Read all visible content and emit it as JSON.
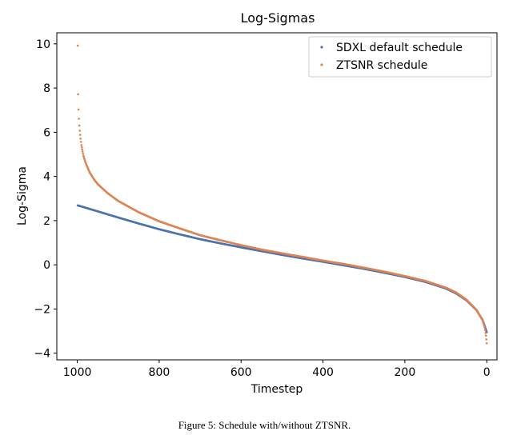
{
  "caption": "Figure 5: Schedule with/without ZTSNR.",
  "chart_data": {
    "type": "scatter",
    "title": "Log-Sigmas",
    "xlabel": "Timestep",
    "ylabel": "Log-Sigma",
    "xlim": [
      1050,
      -25
    ],
    "ylim": [
      -4.3,
      10.5
    ],
    "x_reversed": true,
    "xticks": [
      1000,
      800,
      600,
      400,
      200,
      0
    ],
    "xtick_labels": [
      "1000",
      "800",
      "600",
      "400",
      "200",
      "0"
    ],
    "yticks": [
      -4,
      -2,
      0,
      2,
      4,
      6,
      8,
      10
    ],
    "ytick_labels": [
      "−4",
      "−2",
      "0",
      "2",
      "4",
      "6",
      "8",
      "10"
    ],
    "grid": false,
    "legend_position": "top-right",
    "series": [
      {
        "name": "SDXL default schedule",
        "color": "#4c72b0",
        "points": [
          [
            999,
            2.69
          ],
          [
            950,
            2.42
          ],
          [
            900,
            2.14
          ],
          [
            850,
            1.87
          ],
          [
            800,
            1.61
          ],
          [
            750,
            1.38
          ],
          [
            700,
            1.16
          ],
          [
            650,
            0.97
          ],
          [
            600,
            0.79
          ],
          [
            550,
            0.62
          ],
          [
            500,
            0.45
          ],
          [
            450,
            0.29
          ],
          [
            400,
            0.14
          ],
          [
            350,
            -0.02
          ],
          [
            300,
            -0.18
          ],
          [
            250,
            -0.36
          ],
          [
            200,
            -0.55
          ],
          [
            150,
            -0.77
          ],
          [
            100,
            -1.07
          ],
          [
            75,
            -1.29
          ],
          [
            50,
            -1.6
          ],
          [
            25,
            -2.05
          ],
          [
            10,
            -2.5
          ],
          [
            5,
            -2.75
          ],
          [
            0,
            -3.05
          ]
        ]
      },
      {
        "name": "ZTSNR schedule",
        "color": "#dd8452",
        "points": [
          [
            999,
            9.92
          ],
          [
            998,
            7.72
          ],
          [
            997,
            7.03
          ],
          [
            996,
            6.61
          ],
          [
            995,
            6.3
          ],
          [
            994,
            6.07
          ],
          [
            993,
            5.88
          ],
          [
            992,
            5.71
          ],
          [
            990,
            5.42
          ],
          [
            985,
            4.94
          ],
          [
            980,
            4.63
          ],
          [
            970,
            4.19
          ],
          [
            960,
            3.89
          ],
          [
            950,
            3.65
          ],
          [
            925,
            3.23
          ],
          [
            900,
            2.89
          ],
          [
            850,
            2.38
          ],
          [
            800,
            1.97
          ],
          [
            750,
            1.65
          ],
          [
            700,
            1.34
          ],
          [
            650,
            1.11
          ],
          [
            600,
            0.89
          ],
          [
            550,
            0.69
          ],
          [
            500,
            0.52
          ],
          [
            450,
            0.36
          ],
          [
            400,
            0.19
          ],
          [
            350,
            0.04
          ],
          [
            300,
            -0.13
          ],
          [
            250,
            -0.31
          ],
          [
            200,
            -0.51
          ],
          [
            150,
            -0.73
          ],
          [
            100,
            -1.03
          ],
          [
            75,
            -1.25
          ],
          [
            50,
            -1.57
          ],
          [
            25,
            -2.04
          ],
          [
            10,
            -2.52
          ],
          [
            5,
            -2.83
          ],
          [
            2,
            -3.2
          ],
          [
            0,
            -3.55
          ]
        ]
      }
    ]
  }
}
